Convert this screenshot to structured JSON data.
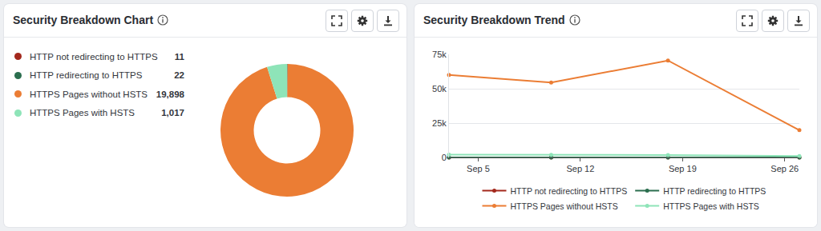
{
  "chart_data": [
    {
      "type": "donut",
      "title": "Security Breakdown Chart",
      "categories": [
        "HTTP not redirecting to HTTPS",
        "HTTP redirecting to HTTPS",
        "HTTPS Pages without HSTS",
        "HTTPS Pages with HSTS"
      ],
      "values": [
        11,
        22,
        19898,
        1017
      ],
      "value_labels": [
        "11",
        "22",
        "19,898",
        "1,017"
      ],
      "colors": [
        "#a3281c",
        "#2b6e4e",
        "#eb7d34",
        "#8ee4b8"
      ],
      "legend": "left"
    },
    {
      "type": "line",
      "title": "Security Breakdown Trend",
      "x": [
        3,
        10,
        18,
        27
      ],
      "xlim": [
        3,
        27
      ],
      "xticks": [
        {
          "value": 5,
          "label": "Sep 5"
        },
        {
          "value": 12,
          "label": "Sep 12"
        },
        {
          "value": 19,
          "label": "Sep 19"
        },
        {
          "value": 26,
          "label": "Sep 26"
        }
      ],
      "ylim": [
        0,
        75000
      ],
      "yticks": [
        0,
        {
          "value": 25000,
          "label": "25k"
        },
        {
          "value": 50000,
          "label": "50k"
        },
        {
          "value": 75000,
          "label": "75k"
        }
      ],
      "grid": true,
      "legend": "bottom",
      "marker": "circle",
      "series": [
        {
          "name": "HTTP not redirecting to HTTPS",
          "color": "#a3281c",
          "values": [
            30,
            35,
            30,
            11
          ]
        },
        {
          "name": "HTTP redirecting to HTTPS",
          "color": "#2b6e4e",
          "values": [
            60,
            70,
            60,
            22
          ]
        },
        {
          "name": "HTTPS Pages without HSTS",
          "color": "#eb7d34",
          "values": [
            60000,
            54500,
            70500,
            19898
          ]
        },
        {
          "name": "HTTPS Pages with HSTS",
          "color": "#8ee4b8",
          "values": [
            2000,
            1900,
            1800,
            1017
          ]
        }
      ]
    }
  ]
}
